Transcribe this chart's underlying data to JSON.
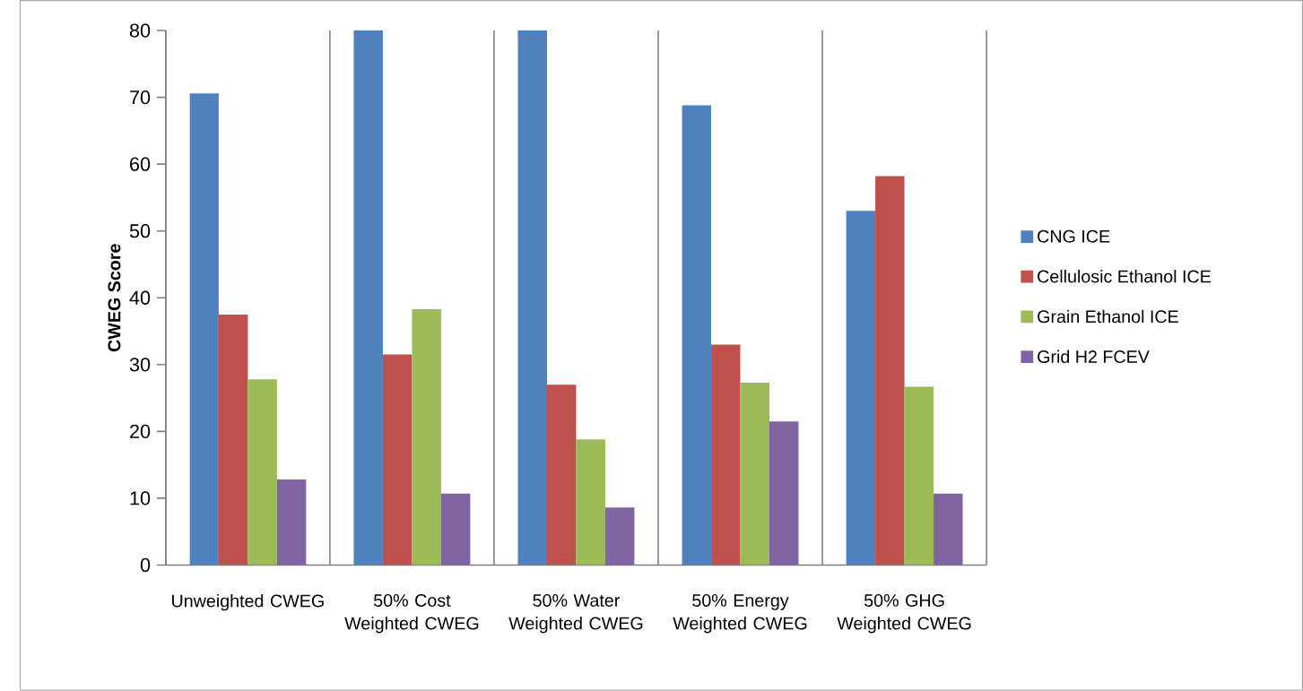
{
  "chart_data": {
    "type": "bar",
    "ylabel": "CWEG Score",
    "categories": [
      "Unweighted CWEG",
      "50% Cost Weighted CWEG",
      "50% Water Weighted CWEG",
      "50% Energy Weighted CWEG",
      "50% GHG Weighted CWEG"
    ],
    "series": [
      {
        "name": "CNG ICE",
        "color": "#4f81bd",
        "values": [
          70.6,
          80,
          80,
          68.8,
          53
        ]
      },
      {
        "name": "Cellulosic Ethanol ICE",
        "color": "#c0504d",
        "values": [
          37.5,
          31.5,
          27,
          33,
          58.2
        ]
      },
      {
        "name": "Grain Ethanol ICE",
        "color": "#9bbb59",
        "values": [
          27.8,
          38.3,
          18.8,
          27.3,
          26.7
        ]
      },
      {
        "name": "Grid H2 FCEV",
        "color": "#8064a2",
        "values": [
          12.8,
          10.7,
          8.6,
          21.5,
          10.7
        ]
      }
    ],
    "ylim": [
      0,
      80
    ],
    "yticks": [
      0,
      10,
      20,
      30,
      40,
      50,
      60,
      70,
      80
    ],
    "grid": "x",
    "legend": "right"
  }
}
